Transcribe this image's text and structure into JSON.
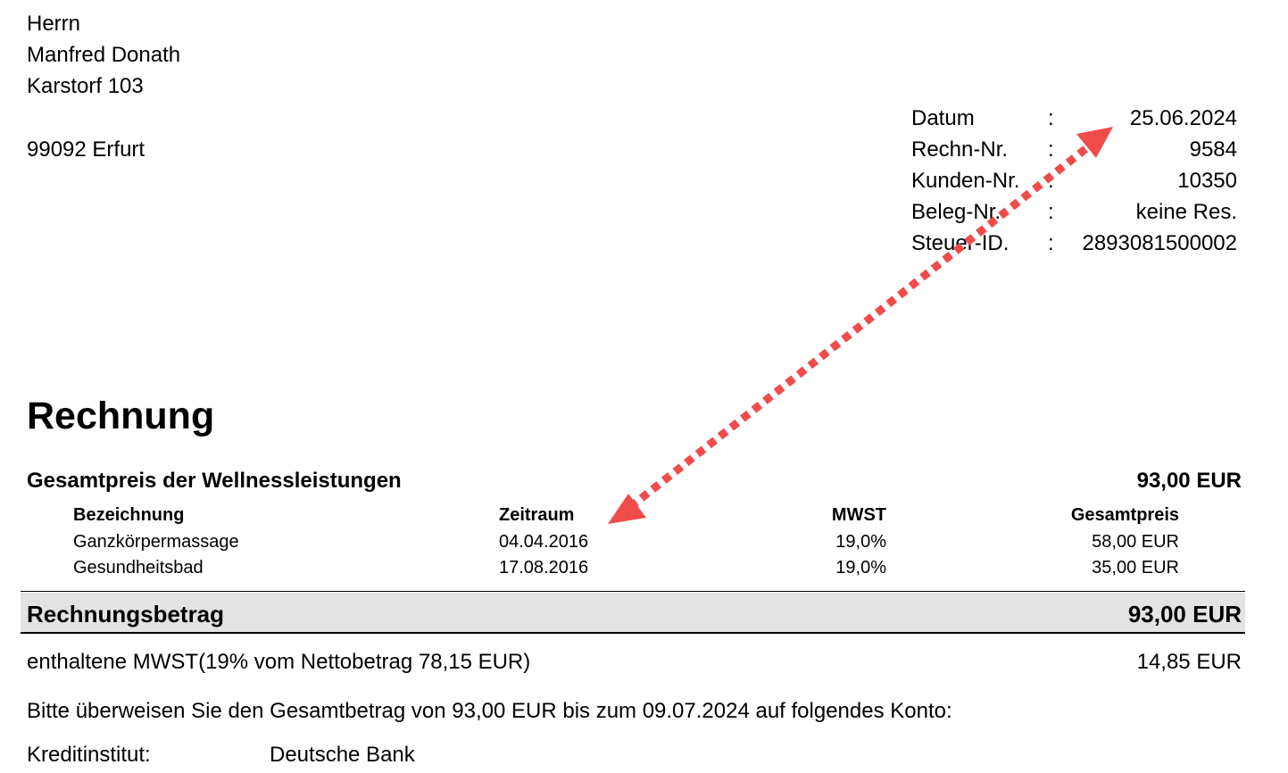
{
  "recipient": {
    "salutation": "Herrn",
    "name": "Manfred Donath",
    "street": "Karstorf 103",
    "city": "99092 Erfurt"
  },
  "meta": [
    {
      "label": "Datum",
      "value": "25.06.2024"
    },
    {
      "label": "Rechn-Nr.",
      "value": "9584"
    },
    {
      "label": "Kunden-Nr.",
      "value": "10350"
    },
    {
      "label": "Beleg-Nr.",
      "value": "keine Res."
    },
    {
      "label": "Steuer-ID.",
      "value": "2893081500002"
    }
  ],
  "meta_separator": ":",
  "title": "Rechnung",
  "section": {
    "label": "Gesamtpreis der Wellnessleistungen",
    "amount": "93,00 EUR"
  },
  "table": {
    "headers": [
      "Bezeichnung",
      "Zeitraum",
      "MWST",
      "Gesamtpreis"
    ],
    "rows": [
      [
        "Ganzkörpermassage",
        "04.04.2016",
        "19,0%",
        "58,00 EUR"
      ],
      [
        "Gesundheitsbad",
        "17.08.2016",
        "19,0%",
        "35,00 EUR"
      ]
    ]
  },
  "total": {
    "label": "Rechnungsbetrag",
    "amount": "93,00 EUR"
  },
  "vat": {
    "label": "enthaltene MWST(19% vom Nettobetrag 78,15 EUR)",
    "amount": "14,85 EUR"
  },
  "payment_note": "Bitte überweisen Sie den Gesamtbetrag von 93,00 EUR bis zum 09.07.2024 auf folgendes Konto:",
  "bank": {
    "label": "Kreditinstitut:",
    "value": "Deutsche Bank"
  },
  "annotation": {
    "arrow_color": "#f04b4b",
    "icon": "double-headed-dotted-arrow-icon"
  }
}
